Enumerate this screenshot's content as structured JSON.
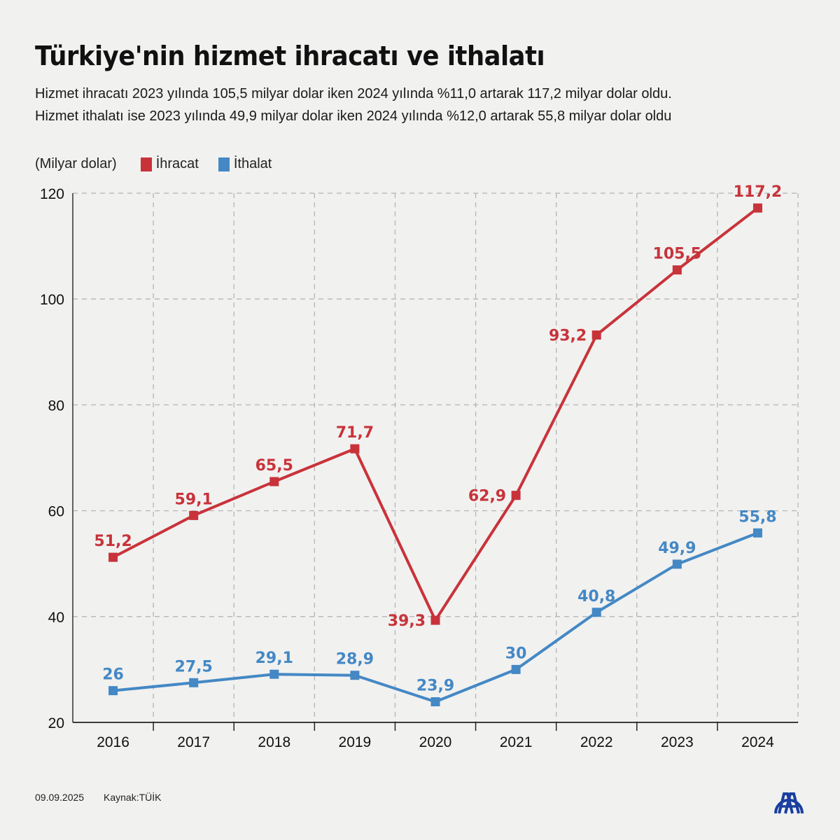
{
  "header": {
    "title": "Türkiye'nin hizmet ihracatı ve ithalatı",
    "subtitle_line1": "Hizmet ihracatı 2023 yılında 105,5 milyar dolar iken 2024 yılında %11,0 artarak 117,2 milyar dolar oldu.",
    "subtitle_line2": "Hizmet ithalatı ise 2023 yılında 49,9 milyar dolar iken 2024 yılında %12,0 artarak 55,8 milyar dolar oldu"
  },
  "legend": {
    "unit": "(Milyar dolar)",
    "items": [
      {
        "label": "İhracat",
        "color": "#c8333a"
      },
      {
        "label": "İthalat",
        "color": "#4488c5"
      }
    ]
  },
  "chart_data": {
    "type": "line",
    "title": "Türkiye'nin hizmet ihracatı ve ithalatı",
    "xlabel": "",
    "ylabel": "(Milyar dolar)",
    "categories": [
      "2016",
      "2017",
      "2018",
      "2019",
      "2020",
      "2021",
      "2022",
      "2023",
      "2024"
    ],
    "ylim": [
      20,
      120
    ],
    "yticks": [
      20,
      40,
      60,
      80,
      100,
      120
    ],
    "grid": true,
    "legend_position": "top-left",
    "series": [
      {
        "name": "İhracat",
        "color": "#c8333a",
        "values": [
          51.2,
          59.1,
          65.5,
          71.7,
          39.3,
          62.9,
          93.2,
          105.5,
          117.2
        ],
        "labels": [
          "51,2",
          "59,1",
          "65,5",
          "71,7",
          "39,3",
          "62,9",
          "93,2",
          "105,5",
          "117,2"
        ],
        "label_positions": [
          "above",
          "above",
          "above",
          "above",
          "left",
          "left",
          "left",
          "above",
          "above"
        ]
      },
      {
        "name": "İthalat",
        "color": "#4488c5",
        "values": [
          26,
          27.5,
          29.1,
          28.9,
          23.9,
          30,
          40.8,
          49.9,
          55.8
        ],
        "labels": [
          "26",
          "27,5",
          "29,1",
          "28,9",
          "23,9",
          "30",
          "40,8",
          "49,9",
          "55,8"
        ],
        "label_positions": [
          "above",
          "above",
          "above",
          "above",
          "above",
          "above",
          "above",
          "above",
          "above"
        ]
      }
    ]
  },
  "footer": {
    "date": "09.09.2025",
    "source": "Kaynak:TÜİK"
  },
  "brand": {
    "logo_icon": "aa-logo-icon",
    "logo_color": "#1a3fa0"
  }
}
